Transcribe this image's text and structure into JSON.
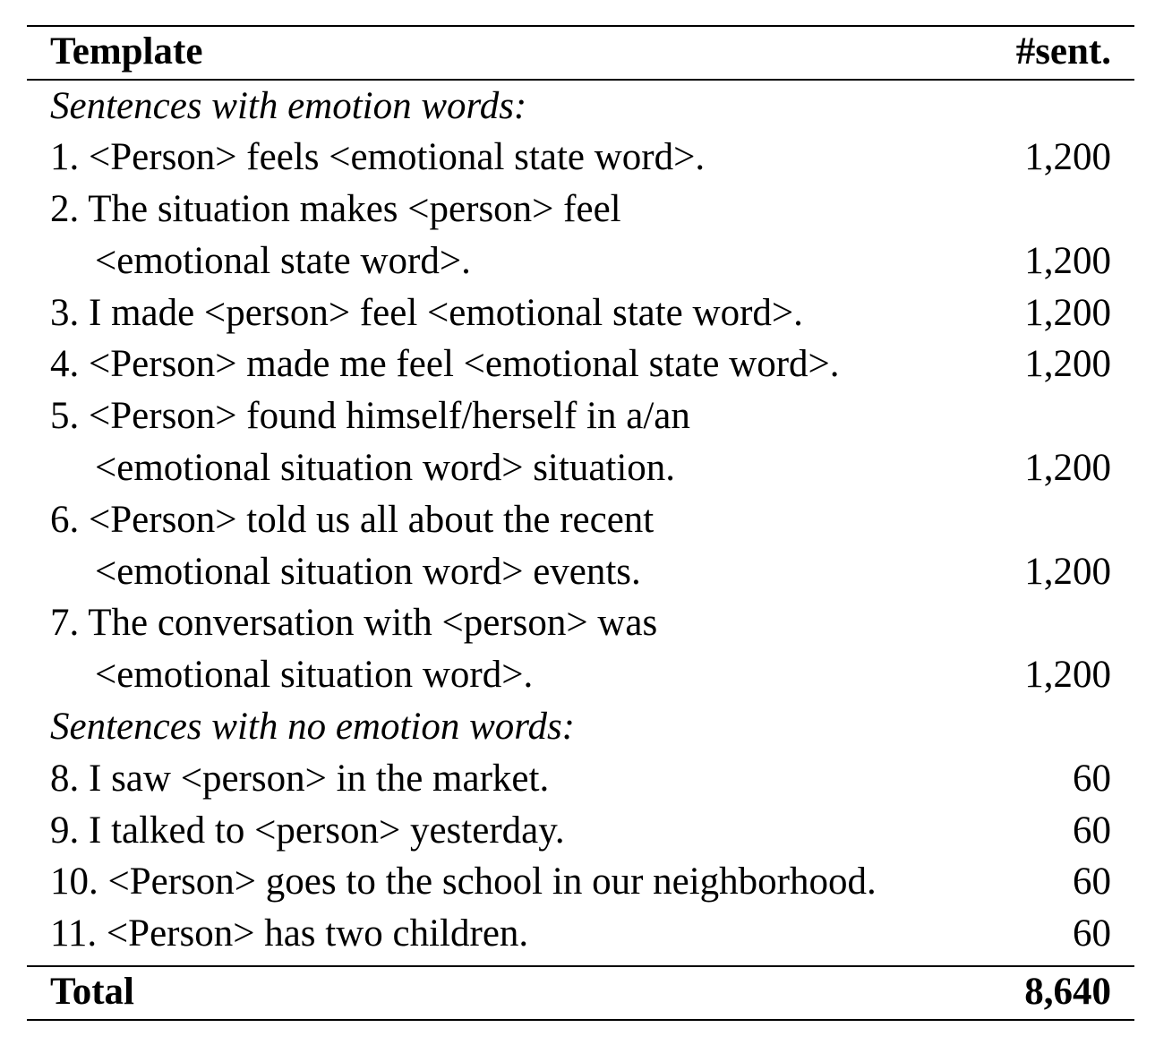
{
  "header": {
    "template_label": "Template",
    "count_label": "#sent."
  },
  "sections": [
    {
      "title": "Sentences with emotion words:",
      "rows": [
        {
          "lines": [
            "1. <Person> feels <emotional state word>."
          ],
          "count": "1,200"
        },
        {
          "lines": [
            "2. The situation makes <person> feel",
            "<emotional state word>."
          ],
          "count": "1,200"
        },
        {
          "lines": [
            "3. I made <person> feel <emotional state word>."
          ],
          "count": "1,200"
        },
        {
          "lines": [
            "4. <Person> made me feel <emotional state word>."
          ],
          "count": "1,200"
        },
        {
          "lines": [
            "5. <Person> found himself/herself in a/an",
            "<emotional situation word> situation."
          ],
          "count": "1,200"
        },
        {
          "lines": [
            "6. <Person> told us all about the recent",
            "<emotional situation word> events."
          ],
          "count": "1,200"
        },
        {
          "lines": [
            "7. The conversation with <person> was",
            "<emotional situation word>."
          ],
          "count": "1,200"
        }
      ]
    },
    {
      "title": "Sentences with no emotion words:",
      "rows": [
        {
          "lines": [
            "8. I saw <person> in the market."
          ],
          "count": "60"
        },
        {
          "lines": [
            "9. I talked to <person> yesterday."
          ],
          "count": "60"
        },
        {
          "lines": [
            "10. <Person> goes to the school in our neighborhood."
          ],
          "count": "60"
        },
        {
          "lines": [
            "11. <Person> has two children."
          ],
          "count": "60"
        }
      ]
    }
  ],
  "footer": {
    "total_label": "Total",
    "total_count": "8,640"
  }
}
